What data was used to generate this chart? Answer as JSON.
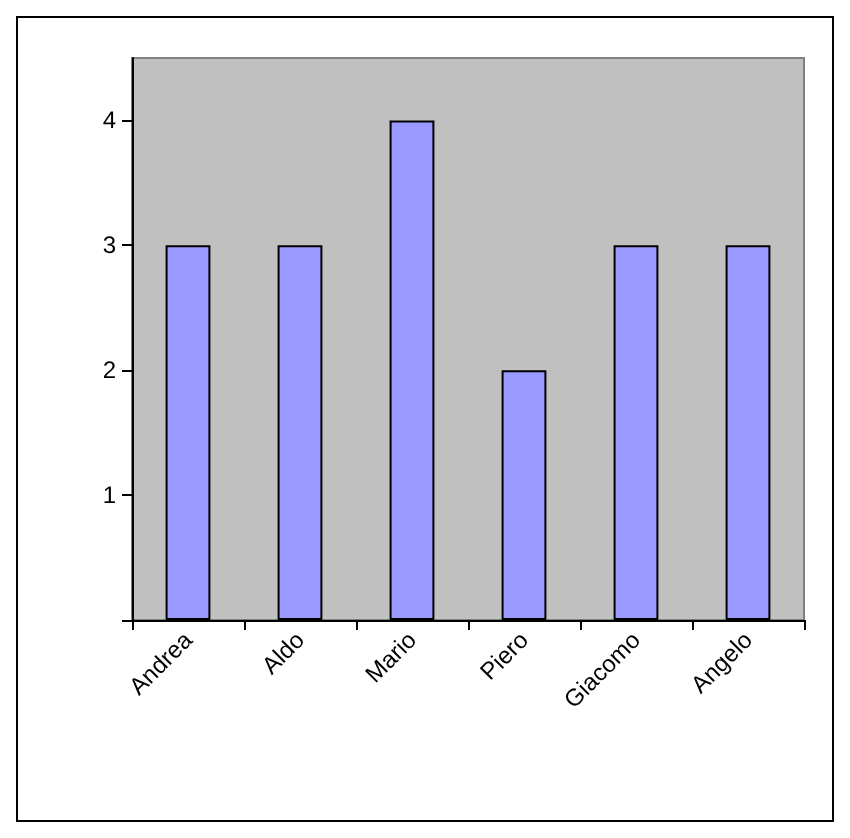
{
  "chart_data": {
    "type": "bar",
    "categories": [
      "Andrea",
      "Aldo",
      "Mario",
      "Piero",
      "Giacomo",
      "Angelo"
    ],
    "values": [
      3,
      3,
      4,
      2,
      3,
      3
    ],
    "color": "#9999ff",
    "ylim": [
      0,
      4.5
    ],
    "yticks": [
      {
        "value": 0,
        "label": null
      },
      1,
      2,
      3,
      4
    ],
    "grid": false
  }
}
